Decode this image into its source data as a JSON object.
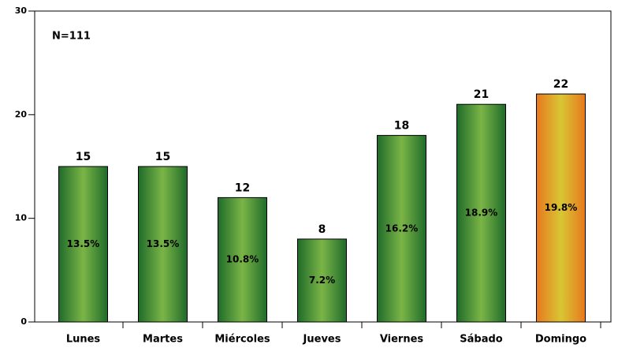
{
  "chart_data": {
    "type": "bar",
    "annotation": "N=111",
    "categories": [
      "Lunes",
      "Martes",
      "Miércoles",
      "Jueves",
      "Viernes",
      "Sábado",
      "Domingo"
    ],
    "values": [
      15,
      15,
      12,
      8,
      18,
      21,
      22
    ],
    "percent_labels": [
      "13.5%",
      "13.5%",
      "10.8%",
      "7.2%",
      "16.2%",
      "18.9%",
      "19.8%"
    ],
    "colors": [
      "green",
      "green",
      "green",
      "green",
      "green",
      "green",
      "orange"
    ],
    "ylim": [
      0,
      30
    ],
    "yticks": [
      0,
      10,
      20,
      30
    ],
    "grid": false
  }
}
